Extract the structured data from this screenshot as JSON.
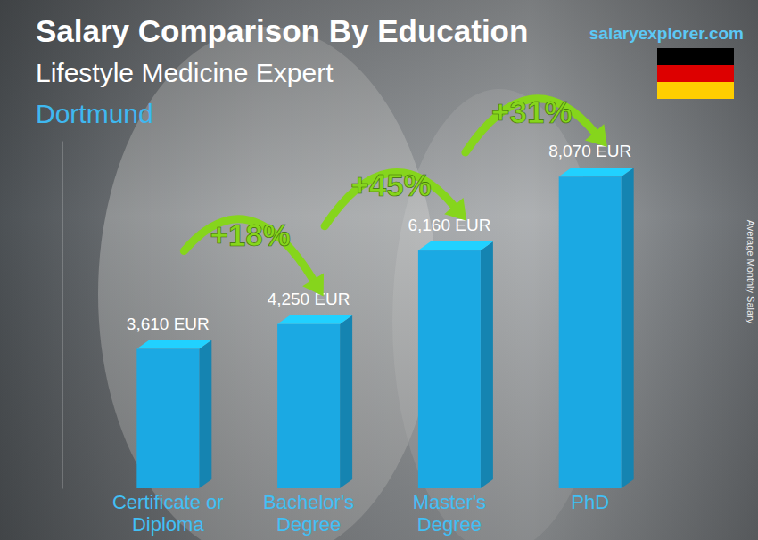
{
  "chart_data": {
    "type": "bar",
    "title": "Salary Comparison By Education",
    "subtitle": "Lifestyle Medicine Expert",
    "location": "Dortmund",
    "source": "salaryexplorer.com",
    "y_label": "Average Monthly Salary",
    "categories": [
      "Certificate or Diploma",
      "Bachelor's Degree",
      "Master's Degree",
      "PhD"
    ],
    "values": [
      3610,
      4250,
      6160,
      8070
    ],
    "value_labels": [
      "3,610 EUR",
      "4,250 EUR",
      "6,160 EUR",
      "8,070 EUR"
    ],
    "annotations": [
      "+18%",
      "+45%",
      "+31%"
    ],
    "color": "#1ba9e3",
    "ylim": [
      0,
      9000
    ],
    "data_labels": true,
    "tick_labels": false,
    "grid": false
  }
}
